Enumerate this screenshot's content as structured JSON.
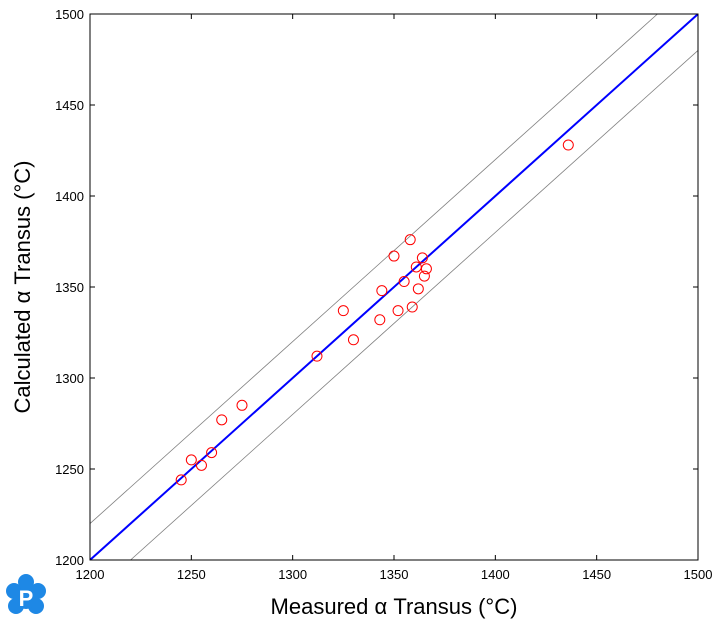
{
  "chart_data": {
    "type": "scatter",
    "xlabel": "Measured α Transus (°C)",
    "ylabel": "Calculated α Transus (°C)",
    "xlim": [
      1200,
      1500
    ],
    "ylim": [
      1200,
      1500
    ],
    "x_ticks": [
      1200,
      1250,
      1300,
      1350,
      1400,
      1450,
      1500
    ],
    "y_ticks": [
      1200,
      1250,
      1300,
      1350,
      1400,
      1450,
      1500
    ],
    "grid": false,
    "reference_lines": [
      {
        "role": "identity",
        "x": [
          1200,
          1500
        ],
        "y": [
          1200,
          1500
        ],
        "color": "#0000ff"
      },
      {
        "role": "upper-bound",
        "x": [
          1200,
          1480
        ],
        "y": [
          1220,
          1500
        ],
        "color": "#808080"
      },
      {
        "role": "lower-bound",
        "x": [
          1220,
          1500
        ],
        "y": [
          1200,
          1480
        ],
        "color": "#808080"
      }
    ],
    "series": [
      {
        "marker": "open-circle",
        "color": "#ff0000",
        "points": [
          {
            "x": 1245,
            "y": 1244
          },
          {
            "x": 1250,
            "y": 1255
          },
          {
            "x": 1255,
            "y": 1252
          },
          {
            "x": 1260,
            "y": 1259
          },
          {
            "x": 1265,
            "y": 1277
          },
          {
            "x": 1275,
            "y": 1285
          },
          {
            "x": 1312,
            "y": 1312
          },
          {
            "x": 1325,
            "y": 1337
          },
          {
            "x": 1330,
            "y": 1321
          },
          {
            "x": 1343,
            "y": 1332
          },
          {
            "x": 1344,
            "y": 1348
          },
          {
            "x": 1350,
            "y": 1367
          },
          {
            "x": 1352,
            "y": 1337
          },
          {
            "x": 1355,
            "y": 1353
          },
          {
            "x": 1358,
            "y": 1376
          },
          {
            "x": 1359,
            "y": 1339
          },
          {
            "x": 1361,
            "y": 1361
          },
          {
            "x": 1362,
            "y": 1349
          },
          {
            "x": 1364,
            "y": 1366
          },
          {
            "x": 1365,
            "y": 1356
          },
          {
            "x": 1366,
            "y": 1360
          },
          {
            "x": 1436,
            "y": 1428
          }
        ]
      }
    ]
  },
  "logo": {
    "glyph": "P",
    "color": "#1e88e5"
  }
}
